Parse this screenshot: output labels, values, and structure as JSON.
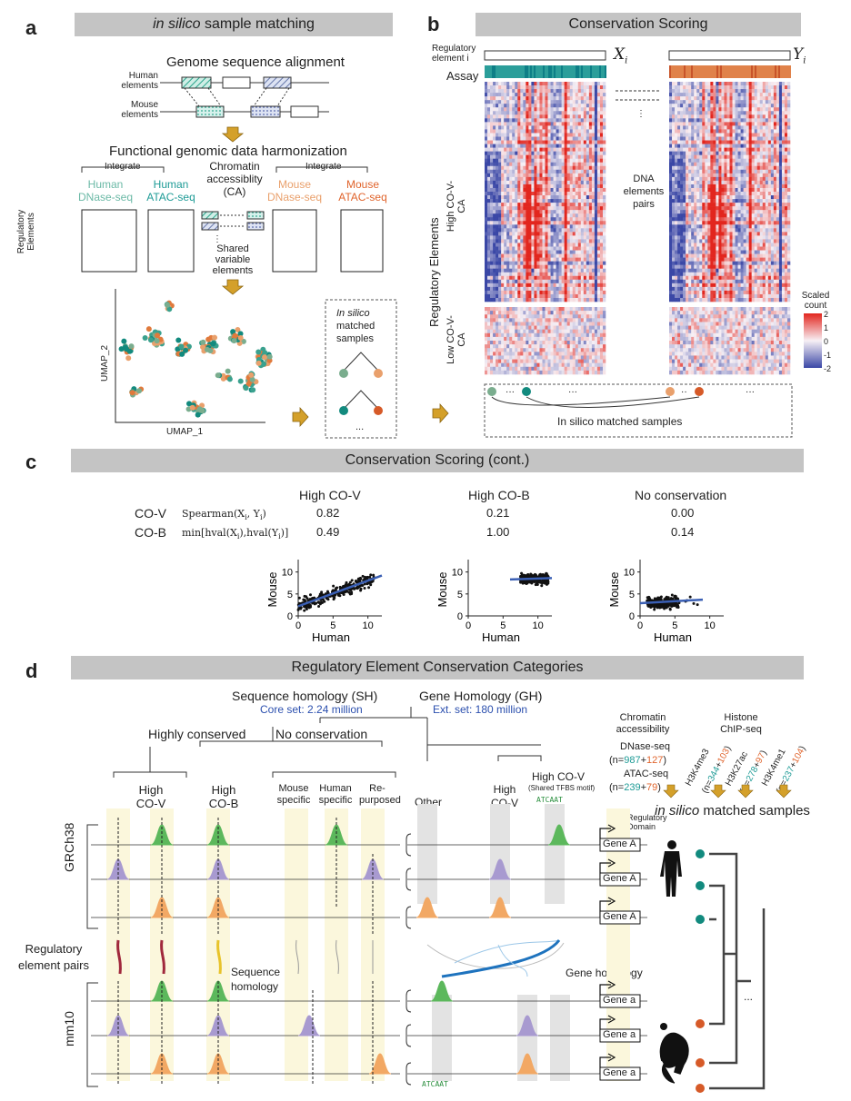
{
  "panel_a": {
    "letter": "a",
    "title_italic": "in silico",
    "title_rest": " sample matching",
    "genome_alignment": "Genome sequence alignment",
    "human_elements": "Human elements",
    "mouse_elements": "Mouse elements",
    "harmonization": "Functional genomic data harmonization",
    "integrate_left": "Integrate",
    "integrate_right": "Integrate",
    "human_dnase": "Human DNase-seq",
    "human_atac": "Human ATAC-seq",
    "chromatin": "Chromatin accessiblity (CA)",
    "mouse_dnase": "Mouse DNase-seq",
    "mouse_atac": "Mouse ATAC-seq",
    "regulatory_elements": "Regulatory Elements",
    "shared_variable": "Shared variable elements",
    "umap_x": "UMAP_1",
    "umap_y": "UMAP_2",
    "matched_italic": "In silico",
    "matched_rest": "matched samples",
    "ellipsis": "..."
  },
  "panel_b": {
    "letter": "b",
    "title": "Conservation Scoring",
    "reg_element": "Regulatory element i",
    "xi": "X",
    "yi": "Y",
    "sub_i": "i",
    "assay": "Assay",
    "dna_pairs": "DNA elements pairs",
    "reg_elements_axis": "Regulatory Elements",
    "high_label": "High CO-V-CA",
    "low_label": "Low CO-V-CA",
    "scaled_count": "Scaled count",
    "legend_ticks": [
      "2",
      "1",
      "0",
      "-1",
      "-2"
    ],
    "matched": "In silico matched samples"
  },
  "panel_c": {
    "letter": "c",
    "title": "Conservation Scoring (cont.)",
    "cov_label": "CO-V",
    "cov_formula": "Spearman(X",
    "cob_label": "CO-B",
    "cob_formula": "min[hval(X",
    "columns": [
      {
        "name": "High CO-V",
        "cov": "0.82",
        "cob": "0.49"
      },
      {
        "name": "High CO-B",
        "cov": "0.21",
        "cob": "1.00"
      },
      {
        "name": "No conservation",
        "cov": "0.00",
        "cob": "0.14"
      }
    ],
    "xlabel": "Human",
    "ylabel": "Mouse",
    "xticks": [
      "0",
      "5",
      "10"
    ],
    "yticks": [
      "0",
      "5",
      "10"
    ]
  },
  "chart_data": [
    {
      "type": "scatter",
      "title": "High CO-V",
      "xlabel": "Human",
      "ylabel": "Mouse",
      "xlim": [
        0,
        12
      ],
      "ylim": [
        0,
        12
      ],
      "trend": [
        [
          0,
          2.2
        ],
        [
          12,
          9.2
        ]
      ]
    },
    {
      "type": "scatter",
      "title": "High CO-B",
      "xlabel": "Human",
      "ylabel": "Mouse",
      "xlim": [
        0,
        12
      ],
      "ylim": [
        0,
        12
      ],
      "trend": [
        [
          6,
          8.3
        ],
        [
          12,
          8.6
        ]
      ]
    },
    {
      "type": "scatter",
      "title": "No conservation",
      "xlabel": "Human",
      "ylabel": "Mouse",
      "xlim": [
        0,
        12
      ],
      "ylim": [
        0,
        12
      ],
      "trend": [
        [
          0,
          2.9
        ],
        [
          9,
          3.7
        ]
      ]
    }
  ],
  "panel_d": {
    "letter": "d",
    "title": "Regulatory Element Conservation Categories",
    "sh": "Sequence homology (SH)",
    "sh_sub": "Core set: 2.24 million",
    "gh": "Gene Homology (GH)",
    "gh_sub": "Ext. set: 180 million",
    "highly_conserved": "Highly conserved",
    "no_conservation": "No conservation",
    "cat_high_cov": "High CO-V",
    "cat_high_cob": "High CO-B",
    "cat_mouse": "Mouse specific",
    "cat_human": "Human specific",
    "cat_repurposed": "Re- purposed",
    "cat_other": "Other",
    "cat_gh_cov": "High CO-V",
    "cat_gh_tfbs": "High CO-V",
    "tfbs_note": "(Shared TFBS motif)",
    "grch38": "GRCh38",
    "mm10": "mm10",
    "pairs": "Regulatory element pairs",
    "seq_homology": "Sequence homology",
    "gene_homology": "Gene homology",
    "reg_domain": "Regulatory Domain",
    "gene_A": "Gene A",
    "gene_a": "Gene a",
    "chromatin": "Chromatin accessibility",
    "histone": "Histone ChIP-seq",
    "dnase": "DNase-seq",
    "dnase_n": "n=",
    "dnase_h": "987",
    "dnase_m": "127",
    "atac": "ATAC-seq",
    "atac_h": "239",
    "atac_m": "79",
    "h3k4me3": "H3K4me3",
    "h3k4me3_h": "344",
    "h3k4me3_m": "103",
    "h3k27ac": "H3K27ac",
    "h3k27ac_h": "278",
    "h3k27ac_m": "97",
    "h3k4me1": "H3K4me1",
    "h3k4me1_h": "237",
    "h3k4me1_m": "104",
    "matched_italic": "in silico",
    "matched_rest": "matched samples",
    "ellipsis": "..."
  }
}
